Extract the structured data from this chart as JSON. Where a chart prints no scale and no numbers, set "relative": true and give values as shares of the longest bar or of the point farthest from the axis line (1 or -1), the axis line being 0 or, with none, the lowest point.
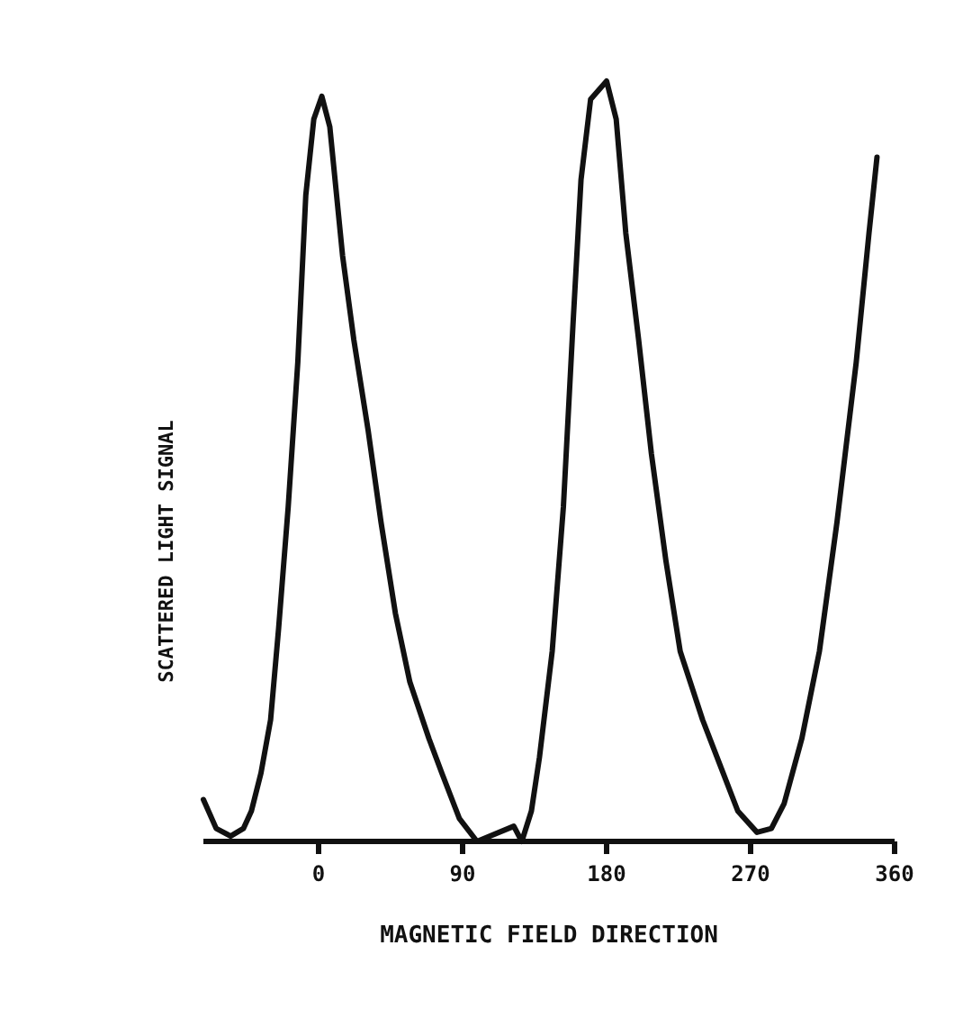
{
  "chart_data": {
    "type": "line",
    "xlabel": "MAGNETIC FIELD DIRECTION",
    "ylabel": "SCATTERED LIGHT SIGNAL",
    "relative": true,
    "xlim": [
      -72,
      360
    ],
    "xticks": [
      0,
      90,
      180,
      270,
      360
    ],
    "grid": false,
    "marker": "none",
    "line_style": "solid",
    "series": [
      {
        "color": "#111111",
        "x": [
          -72,
          -64,
          -55,
          -47,
          -42,
          -36,
          -30,
          -25,
          -19,
          -13,
          -8,
          -3,
          2,
          7,
          15,
          22,
          31,
          39,
          48,
          57,
          69,
          77,
          88,
          99,
          122,
          127,
          133,
          138,
          146,
          153,
          159,
          164,
          170,
          180,
          186,
          192,
          200,
          208,
          217,
          226,
          240,
          251,
          262,
          274,
          283,
          291,
          302,
          313,
          324,
          336,
          344,
          349
        ],
        "values": [
          0.055,
          0.017,
          0.007,
          0.017,
          0.04,
          0.09,
          0.16,
          0.28,
          0.44,
          0.63,
          0.85,
          0.95,
          0.98,
          0.94,
          0.77,
          0.66,
          0.54,
          0.42,
          0.3,
          0.21,
          0.135,
          0.09,
          0.03,
          0,
          0.02,
          0,
          0.04,
          0.11,
          0.25,
          0.44,
          0.68,
          0.87,
          0.976,
          1,
          0.95,
          0.8,
          0.66,
          0.51,
          0.37,
          0.25,
          0.16,
          0.1,
          0.04,
          0.012,
          0.017,
          0.05,
          0.135,
          0.25,
          0.42,
          0.63,
          0.8,
          0.9
        ]
      }
    ]
  }
}
